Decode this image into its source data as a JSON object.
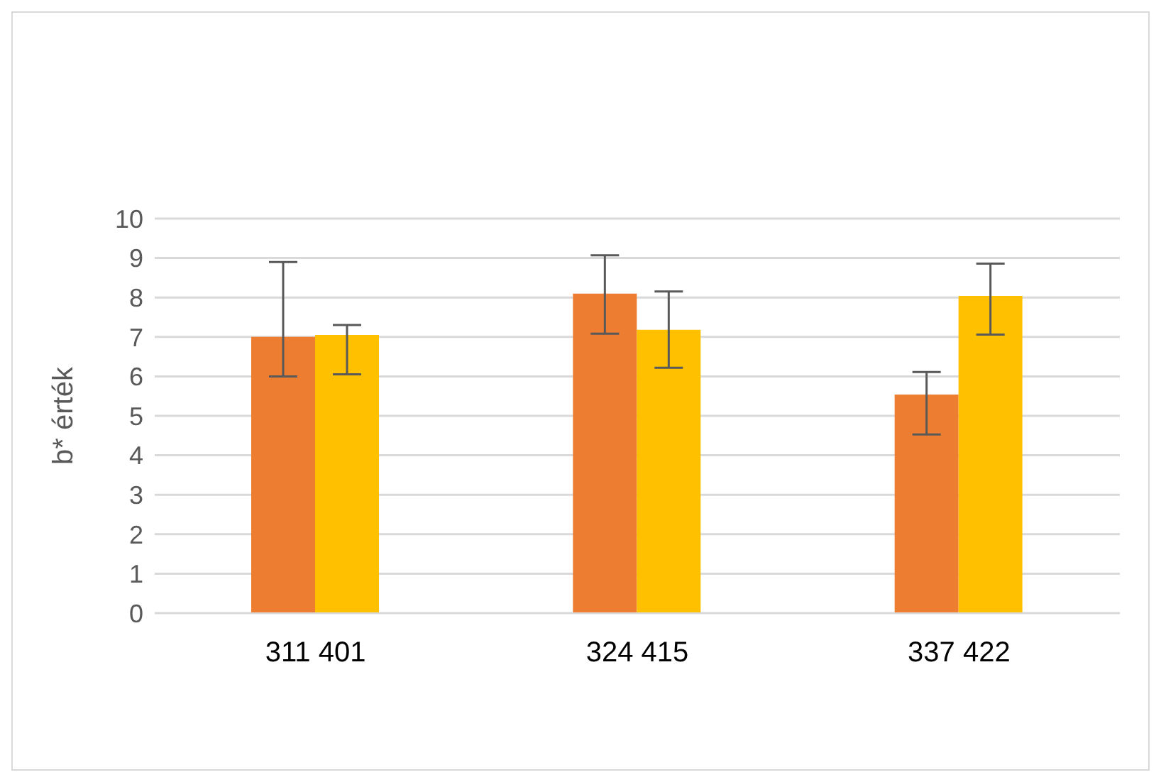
{
  "chart_data": {
    "type": "bar",
    "ylabel": "b* érték",
    "categories": [
      "311 401",
      "324 415",
      "337 422"
    ],
    "series": [
      {
        "color": "#ed7d31",
        "values": [
          7.0,
          8.1,
          5.54
        ],
        "errors": [
          [
            6.0,
            8.9
          ],
          [
            7.08,
            9.07
          ],
          [
            4.53,
            6.11
          ]
        ]
      },
      {
        "color": "#ffc000",
        "values": [
          7.05,
          7.18,
          8.04
        ],
        "errors": [
          [
            6.05,
            7.3
          ],
          [
            6.22,
            8.15
          ],
          [
            7.06,
            8.86
          ]
        ]
      }
    ],
    "ylim": [
      0,
      10
    ],
    "yticks": [
      0,
      1,
      2,
      3,
      4,
      5,
      6,
      7,
      8,
      9,
      10
    ],
    "grid": "y",
    "legend": false
  }
}
